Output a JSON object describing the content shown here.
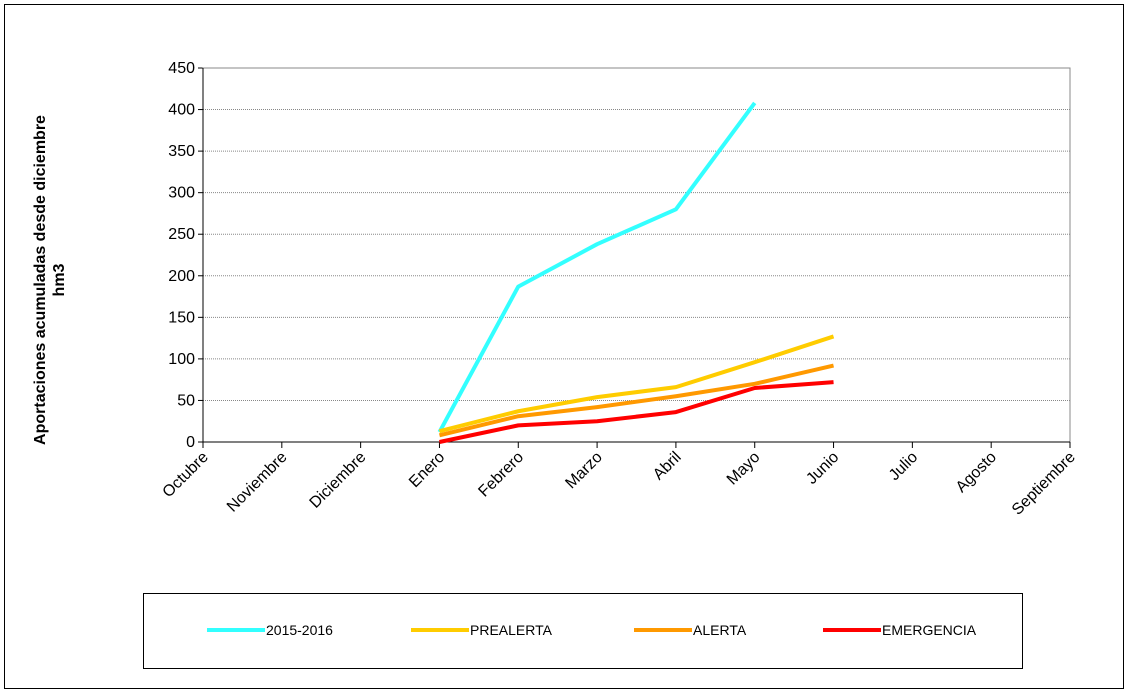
{
  "chart_data": {
    "type": "line",
    "ylabel": [
      "Aportaciones acumuladas desde diciembre",
      "hm3"
    ],
    "categories": [
      "Octubre",
      "Noviembre",
      "Diciembre",
      "Enero",
      "Febrero",
      "Marzo",
      "Abril",
      "Mayo",
      "Junio",
      "Julio",
      "Agosto",
      "Septiembre"
    ],
    "series": [
      {
        "name": "2015-2016",
        "color": "#33ffff",
        "values": [
          null,
          null,
          null,
          12,
          187,
          238,
          280,
          408,
          null,
          null,
          null,
          null
        ]
      },
      {
        "name": "PREALERTA",
        "color": "#ffcc00",
        "values": [
          null,
          null,
          null,
          13,
          37,
          54,
          66,
          96,
          127,
          null,
          null,
          null
        ]
      },
      {
        "name": "ALERTA",
        "color": "#ff9900",
        "values": [
          null,
          null,
          null,
          8,
          31,
          42,
          55,
          70,
          92,
          null,
          null,
          null
        ]
      },
      {
        "name": "EMERGENCIA",
        "color": "#ff0000",
        "values": [
          null,
          null,
          null,
          0,
          20,
          25,
          36,
          65,
          72,
          null,
          null,
          null
        ]
      }
    ],
    "ylim": [
      0,
      450
    ],
    "yticks": [
      0,
      50,
      100,
      150,
      200,
      250,
      300,
      350,
      400,
      450
    ],
    "grid": true
  }
}
